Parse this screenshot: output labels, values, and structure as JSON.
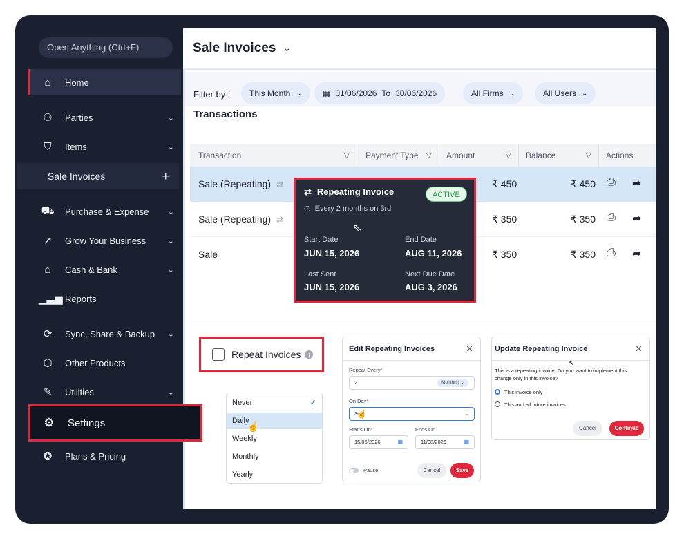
{
  "sidebar": {
    "open_anything": "Open Anything (Ctrl+F)",
    "items": [
      {
        "label": "Home",
        "icon": "home-icon"
      },
      {
        "label": "Parties",
        "icon": "users-icon"
      },
      {
        "label": "Items",
        "icon": "bag-icon"
      },
      {
        "label": "Sale Invoices"
      },
      {
        "label": "Purchase & Expense",
        "icon": "cart-icon"
      },
      {
        "label": "Grow Your Business",
        "icon": "trend-icon"
      },
      {
        "label": "Cash & Bank",
        "icon": "bank-icon"
      },
      {
        "label": "Reports",
        "icon": "bar-chart-icon"
      },
      {
        "label": "Sync, Share & Backup",
        "icon": "sync-icon"
      },
      {
        "label": "Other Products",
        "icon": "box-icon"
      },
      {
        "label": "Utilities",
        "icon": "tools-icon"
      },
      {
        "label": "Settings",
        "icon": "gear-icon"
      },
      {
        "label": "Plans & Pricing",
        "icon": "award-icon"
      }
    ]
  },
  "header": {
    "title": "Sale Invoices"
  },
  "filters": {
    "label": "Filter by :",
    "period": "This Month",
    "date_from": "01/06/2026",
    "date_to_word": "To",
    "date_to": "30/06/2026",
    "firms": "All Firms",
    "users": "All Users"
  },
  "transactions": {
    "title": "Transactions",
    "columns": [
      "Transaction",
      "Payment Type",
      "Amount",
      "Balance",
      "Actions"
    ],
    "rows": [
      {
        "transaction": "Sale (Repeating)",
        "amount": "₹ 450",
        "balance": "₹ 450"
      },
      {
        "transaction": "Sale (Repeating)",
        "amount": "₹ 350",
        "balance": "₹ 350"
      },
      {
        "transaction": "Sale",
        "amount": "₹ 350",
        "balance": "₹ 350"
      }
    ]
  },
  "tooltip": {
    "title": "Repeating Invoice",
    "badge": "ACTIVE",
    "frequency": "Every 2 months on 3rd",
    "start_label": "Start Date",
    "start_value": "JUN 15, 2026",
    "end_label": "End Date",
    "end_value": "AUG 11, 2026",
    "last_label": "Last Sent",
    "last_value": "JUN 15, 2026",
    "next_label": "Next Due Date",
    "next_value": "AUG 3, 2026"
  },
  "repeat": {
    "label": "Repeat Invoices"
  },
  "frequency_options": [
    "Never",
    "Daily",
    "Weekly",
    "Monthly",
    "Yearly"
  ],
  "edit_dialog": {
    "title": "Edit Repeating Invoices",
    "repeat_every_label": "Repeat Every",
    "repeat_every_value": "2",
    "unit": "Month(s)",
    "on_day_label": "On Day",
    "on_day_value": "3rd",
    "starts_label": "Starts On",
    "starts_value": "15/06/2026",
    "ends_label": "Ends On",
    "ends_value": "11/08/2026",
    "pause_label": "Pause",
    "cancel": "Cancel",
    "save": "Save"
  },
  "update_dialog": {
    "title": "Update Repeating Invoice",
    "message": "This is a repeating invoice. Do you want to implement this change only in this invoice?",
    "option1": "This invoice only",
    "option2": "This and all future invoices",
    "cancel": "Cancel",
    "continue": "Continue"
  },
  "colors": {
    "accent": "#e0283c",
    "sidebar_bg": "#1b2031",
    "highlight_row": "#d5e6f6"
  }
}
